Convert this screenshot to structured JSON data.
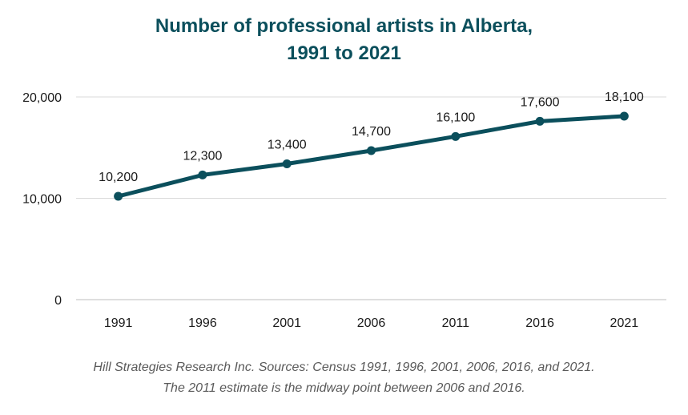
{
  "chart_data": {
    "type": "line",
    "title_lines": [
      "Number of professional artists in Alberta,",
      "1991 to 2021"
    ],
    "categories": [
      "1991",
      "1996",
      "2001",
      "2006",
      "2011",
      "2016",
      "2021"
    ],
    "series": [
      {
        "values": [
          10200,
          12300,
          13400,
          14700,
          16100,
          17600,
          18100
        ],
        "value_labels": [
          "10,200",
          "12,300",
          "13,400",
          "14,700",
          "16,100",
          "17,600",
          "18,100"
        ],
        "color": "#0b4f5c"
      }
    ],
    "ylim": [
      0,
      20000
    ],
    "y_ticks": [
      0,
      10000,
      20000
    ],
    "y_tick_labels": [
      "0",
      "10,000",
      "20,000"
    ],
    "grid": true,
    "legend": "none",
    "xlabel": "",
    "ylabel": ""
  },
  "footer": {
    "line1": "Hill Strategies Research Inc. Sources: Census 1991, 1996, 2001, 2006, 2016, and 2021.",
    "line2": "The 2011 estimate is the midway point between 2006 and 2016."
  },
  "colors": {
    "title": "#0b4f5c",
    "line": "#0b4f5c",
    "grid": "#d9d9d9",
    "axis": "#bfbfbf",
    "footer": "#5a5a5a"
  }
}
